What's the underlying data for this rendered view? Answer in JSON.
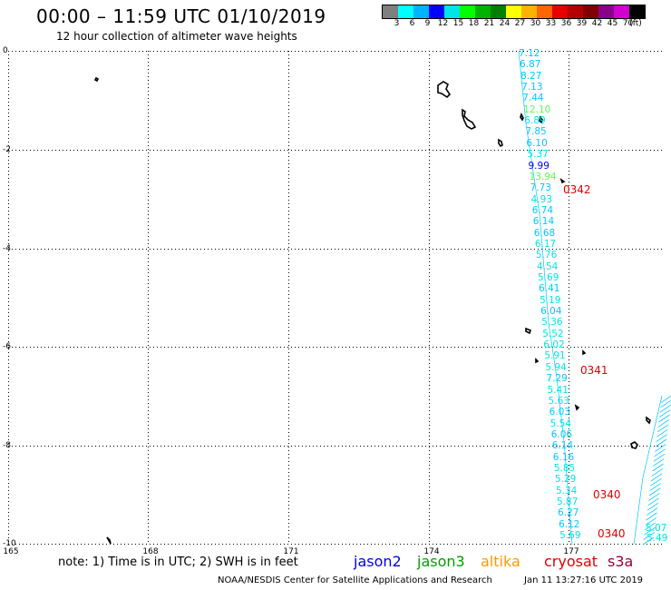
{
  "header": {
    "title": "00:00 – 11:59 UTC 01/10/2019",
    "subtitle": "12 hour collection of altimeter wave heights"
  },
  "colorbar": {
    "colors": [
      "#7f7f7f",
      "#00ffff",
      "#00b3ff",
      "#0000ff",
      "#00e5e5",
      "#00ff00",
      "#00b300",
      "#008000",
      "#ffff00",
      "#ffb300",
      "#ff6600",
      "#e60000",
      "#b30000",
      "#800000",
      "#8b008b",
      "#d000d0",
      "#000000"
    ],
    "labels": [
      "3",
      "6",
      "9",
      "12",
      "15",
      "18",
      "21",
      "24",
      "27",
      "30",
      "33",
      "36",
      "39",
      "42",
      "45",
      "70",
      "(ft)"
    ]
  },
  "axes": {
    "x_ticks": [
      "165",
      "168",
      "171",
      "174",
      "177"
    ],
    "y_ticks": [
      "0",
      "-2",
      "-4",
      "-6",
      "-8",
      "-10"
    ]
  },
  "passes": [
    {
      "label": "0342"
    },
    {
      "label": "0341"
    },
    {
      "label": "0340"
    },
    {
      "label": "0340"
    }
  ],
  "wave_heights": [
    {
      "v": "7.12",
      "color": "#00c8ff"
    },
    {
      "v": "6.87",
      "color": "#00c8ff"
    },
    {
      "v": "8.27",
      "color": "#00c8ff"
    },
    {
      "v": "7.13",
      "color": "#00c8ff"
    },
    {
      "v": "7.44",
      "color": "#00c8ff"
    },
    {
      "v": "12.10",
      "color": "#55ff55"
    },
    {
      "v": "6.89",
      "color": "#00e5e5"
    },
    {
      "v": "7.85",
      "color": "#00c8ff"
    },
    {
      "v": "6.10",
      "color": "#00c8ff"
    },
    {
      "v": "5.37",
      "color": "#00e5e5"
    },
    {
      "v": "9.99",
      "color": "#0000ff"
    },
    {
      "v": "13.94",
      "color": "#55ff55"
    },
    {
      "v": "7.73",
      "color": "#00c8ff"
    },
    {
      "v": "4.93",
      "color": "#00e5e5"
    },
    {
      "v": "6.74",
      "color": "#00c8ff"
    },
    {
      "v": "6.14",
      "color": "#00c8ff"
    },
    {
      "v": "6.68",
      "color": "#00c8ff"
    },
    {
      "v": "6.17",
      "color": "#00e5e5"
    },
    {
      "v": "5.76",
      "color": "#00e5e5"
    },
    {
      "v": "4.54",
      "color": "#00e5e5"
    },
    {
      "v": "5.69",
      "color": "#00e5e5"
    },
    {
      "v": "6.41",
      "color": "#00c8ff"
    },
    {
      "v": "5.19",
      "color": "#00e5e5"
    },
    {
      "v": "6.04",
      "color": "#00c8ff"
    },
    {
      "v": "5.36",
      "color": "#00e5e5"
    },
    {
      "v": "5.52",
      "color": "#00e5e5"
    },
    {
      "v": "6.02",
      "color": "#00e5e5"
    },
    {
      "v": "5.91",
      "color": "#00e5e5"
    },
    {
      "v": "5.94",
      "color": "#00e5e5"
    },
    {
      "v": "7.29",
      "color": "#00c8ff"
    },
    {
      "v": "5.41",
      "color": "#00e5e5"
    },
    {
      "v": "5.63",
      "color": "#00e5e5"
    },
    {
      "v": "6.03",
      "color": "#00c8ff"
    },
    {
      "v": "5.54",
      "color": "#00e5e5"
    },
    {
      "v": "6.06",
      "color": "#00c8ff"
    },
    {
      "v": "6.14",
      "color": "#00c8ff"
    },
    {
      "v": "6.16",
      "color": "#00c8ff"
    },
    {
      "v": "5.85",
      "color": "#00e5e5"
    },
    {
      "v": "5.29",
      "color": "#00e5e5"
    },
    {
      "v": "5.34",
      "color": "#00e5e5"
    },
    {
      "v": "5.87",
      "color": "#00e5e5"
    },
    {
      "v": "6.27",
      "color": "#00c8ff"
    },
    {
      "v": "6.12",
      "color": "#00c8ff"
    },
    {
      "v": "5.69",
      "color": "#00e5e5"
    },
    {
      "v": "5.07",
      "color": "#00e5e5"
    },
    {
      "v": "5.49",
      "color": "#00e5e5"
    }
  ],
  "footer": {
    "note": "note:  1) Time is in UTC;  2) SWH is in feet",
    "satellites": [
      {
        "name": "jason2",
        "color": "#0000e0"
      },
      {
        "name": "jason3",
        "color": "#00a000"
      },
      {
        "name": "altika",
        "color": "#ff9900"
      },
      {
        "name": "cryosat",
        "color": "#e00000"
      },
      {
        "name": "s3a",
        "color": "#990033"
      }
    ],
    "credit": "NOAA/NESDIS Center for Satellite Applications and Research",
    "timestamp": "Jan 11 13:27:16 UTC 2019"
  }
}
